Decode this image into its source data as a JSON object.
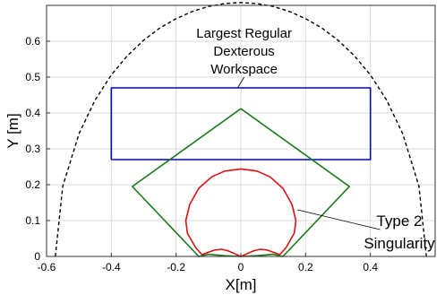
{
  "chart_data": {
    "type": "line",
    "xlabel": "X[m]",
    "ylabel": "Y [m]",
    "xlim": [
      -0.6,
      0.6
    ],
    "ylim": [
      0,
      0.7
    ],
    "xticks": [
      -0.6,
      -0.4,
      -0.2,
      0,
      0.2,
      0.4
    ],
    "xtick_labels": [
      "-0.6",
      "-0.4",
      "-0.2",
      "0",
      "0.2",
      "0.4"
    ],
    "yticks": [
      0,
      0.1,
      0.2,
      0.3,
      0.4,
      0.5,
      0.6
    ],
    "ytick_labels": [
      "0",
      "0.1",
      "0.2",
      "0.3",
      "0.4",
      "0.5",
      "0.6"
    ],
    "grid": true,
    "series": [
      {
        "key": "workspace-boundary",
        "color": "#000000",
        "dash": true,
        "x": [
          -0.573,
          -0.55,
          -0.5,
          -0.45,
          -0.4,
          -0.35,
          -0.3,
          -0.25,
          -0.2,
          -0.15,
          -0.1,
          -0.05,
          0,
          0.05,
          0.1,
          0.15,
          0.2,
          0.25,
          0.3,
          0.35,
          0.4,
          0.45,
          0.5,
          0.55,
          0.573
        ],
        "y": [
          0.0,
          0.196,
          0.342,
          0.436,
          0.506,
          0.56,
          0.603,
          0.637,
          0.663,
          0.683,
          0.697,
          0.705,
          0.708,
          0.705,
          0.697,
          0.683,
          0.663,
          0.637,
          0.603,
          0.56,
          0.506,
          0.436,
          0.342,
          0.196,
          0.0
        ]
      },
      {
        "key": "largest-regular-dexterous-workspace",
        "color": "#0000dd",
        "dash": false,
        "x": [
          -0.4,
          0.4,
          0.4,
          -0.4,
          -0.4
        ],
        "y": [
          0.27,
          0.27,
          0.47,
          0.47,
          0.27
        ]
      },
      {
        "key": "reachable-workspace",
        "color": "#1a7a1a",
        "dash": false,
        "x": [
          0,
          0.335,
          0.13,
          0.1,
          0.05,
          0,
          -0.05,
          -0.1,
          -0.13,
          -0.335,
          0
        ],
        "y": [
          0.412,
          0.195,
          0.0,
          0.006,
          0.002,
          0.0,
          0.002,
          0.006,
          0.0,
          0.195,
          0.412
        ]
      },
      {
        "key": "type-2-singularity",
        "color": "#dd1111",
        "dash": false,
        "x": [
          0,
          0.05,
          0.09,
          0.13,
          0.158,
          0.17,
          0.165,
          0.14,
          0.12,
          0.1,
          0.08,
          0.06,
          0.04,
          0.02,
          0,
          -0.02,
          -0.04,
          -0.06,
          -0.08,
          -0.1,
          -0.12,
          -0.14,
          -0.165,
          -0.17,
          -0.158,
          -0.13,
          -0.09,
          -0.05,
          0
        ],
        "y": [
          0.244,
          0.238,
          0.222,
          0.19,
          0.145,
          0.1,
          0.065,
          0.025,
          0.005,
          0.012,
          0.018,
          0.02,
          0.016,
          0.008,
          0.0,
          0.008,
          0.016,
          0.02,
          0.018,
          0.012,
          0.005,
          0.025,
          0.065,
          0.1,
          0.145,
          0.19,
          0.222,
          0.238,
          0.244
        ]
      }
    ],
    "annotations": [
      {
        "key": "dexterous-label",
        "lines": [
          "Largest Regular",
          "Dexterous",
          "Workspace"
        ],
        "arrow_from": [
          0.01,
          0.5
        ],
        "arrow_to": [
          -0.01,
          0.47
        ]
      },
      {
        "key": "singularity-label",
        "lines": [
          "Type 2",
          "Singularity"
        ],
        "arrow_from": [
          0.43,
          0.075
        ],
        "arrow_to": [
          0.175,
          0.13
        ]
      }
    ]
  }
}
